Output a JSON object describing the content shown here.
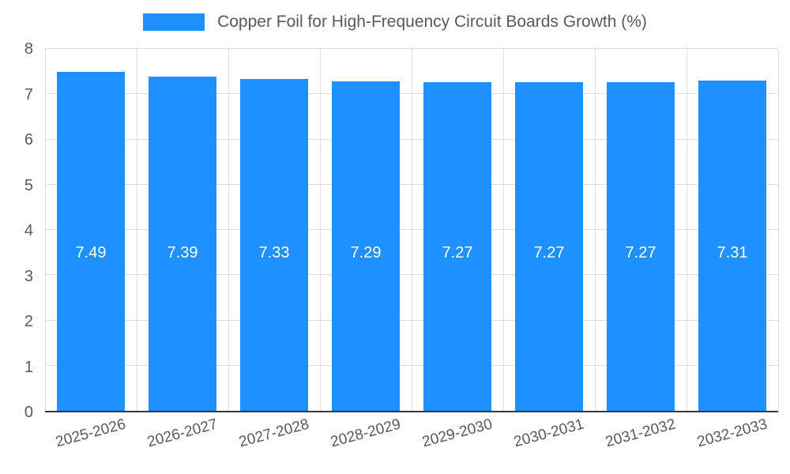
{
  "chart_data": {
    "type": "bar",
    "title": "Copper Foil for High-Frequency Circuit Boards Growth (%)",
    "categories": [
      "2025-2026",
      "2026-2027",
      "2027-2028",
      "2028-2029",
      "2029-2030",
      "2030-2031",
      "2031-2032",
      "2032-2033"
    ],
    "values": [
      7.49,
      7.39,
      7.33,
      7.29,
      7.27,
      7.27,
      7.27,
      7.31
    ],
    "value_labels": [
      "7.49",
      "7.39",
      "7.33",
      "7.29",
      "7.27",
      "7.27",
      "7.27",
      "7.31"
    ],
    "ylim": [
      0,
      8
    ],
    "yticks": [
      0,
      1,
      2,
      3,
      4,
      5,
      6,
      7,
      8
    ],
    "xlabel": "",
    "ylabel": "",
    "grid": true,
    "legend_position": "top",
    "colors": {
      "bar": "#1E90FF",
      "value_label": "#ffffff",
      "tick_text": "#595959",
      "gridline": "#dcdcdc",
      "axis_line": "#3a3a3a"
    }
  }
}
